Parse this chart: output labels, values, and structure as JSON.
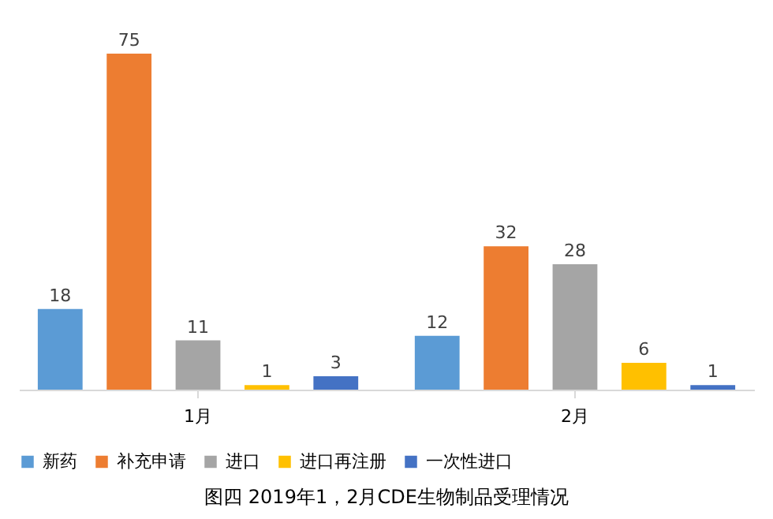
{
  "chart_data": {
    "type": "bar",
    "title": "图四 2019年1，2月CDE生物制品受理情况",
    "categories": [
      "1月",
      "2月"
    ],
    "series": [
      {
        "name": "新药",
        "color": "#5b9bd5",
        "values": [
          18,
          12
        ]
      },
      {
        "name": "补充申请",
        "color": "#ed7d31",
        "values": [
          75,
          32
        ]
      },
      {
        "name": "进口",
        "color": "#a5a5a5",
        "values": [
          11,
          28
        ]
      },
      {
        "name": "进口再注册",
        "color": "#ffc000",
        "values": [
          1,
          6
        ]
      },
      {
        "name": "一次性进口",
        "color": "#4472c4",
        "values": [
          3,
          1
        ]
      }
    ],
    "data_labels": true,
    "legend": "bottom",
    "grid": false,
    "tick_labels": "x"
  }
}
